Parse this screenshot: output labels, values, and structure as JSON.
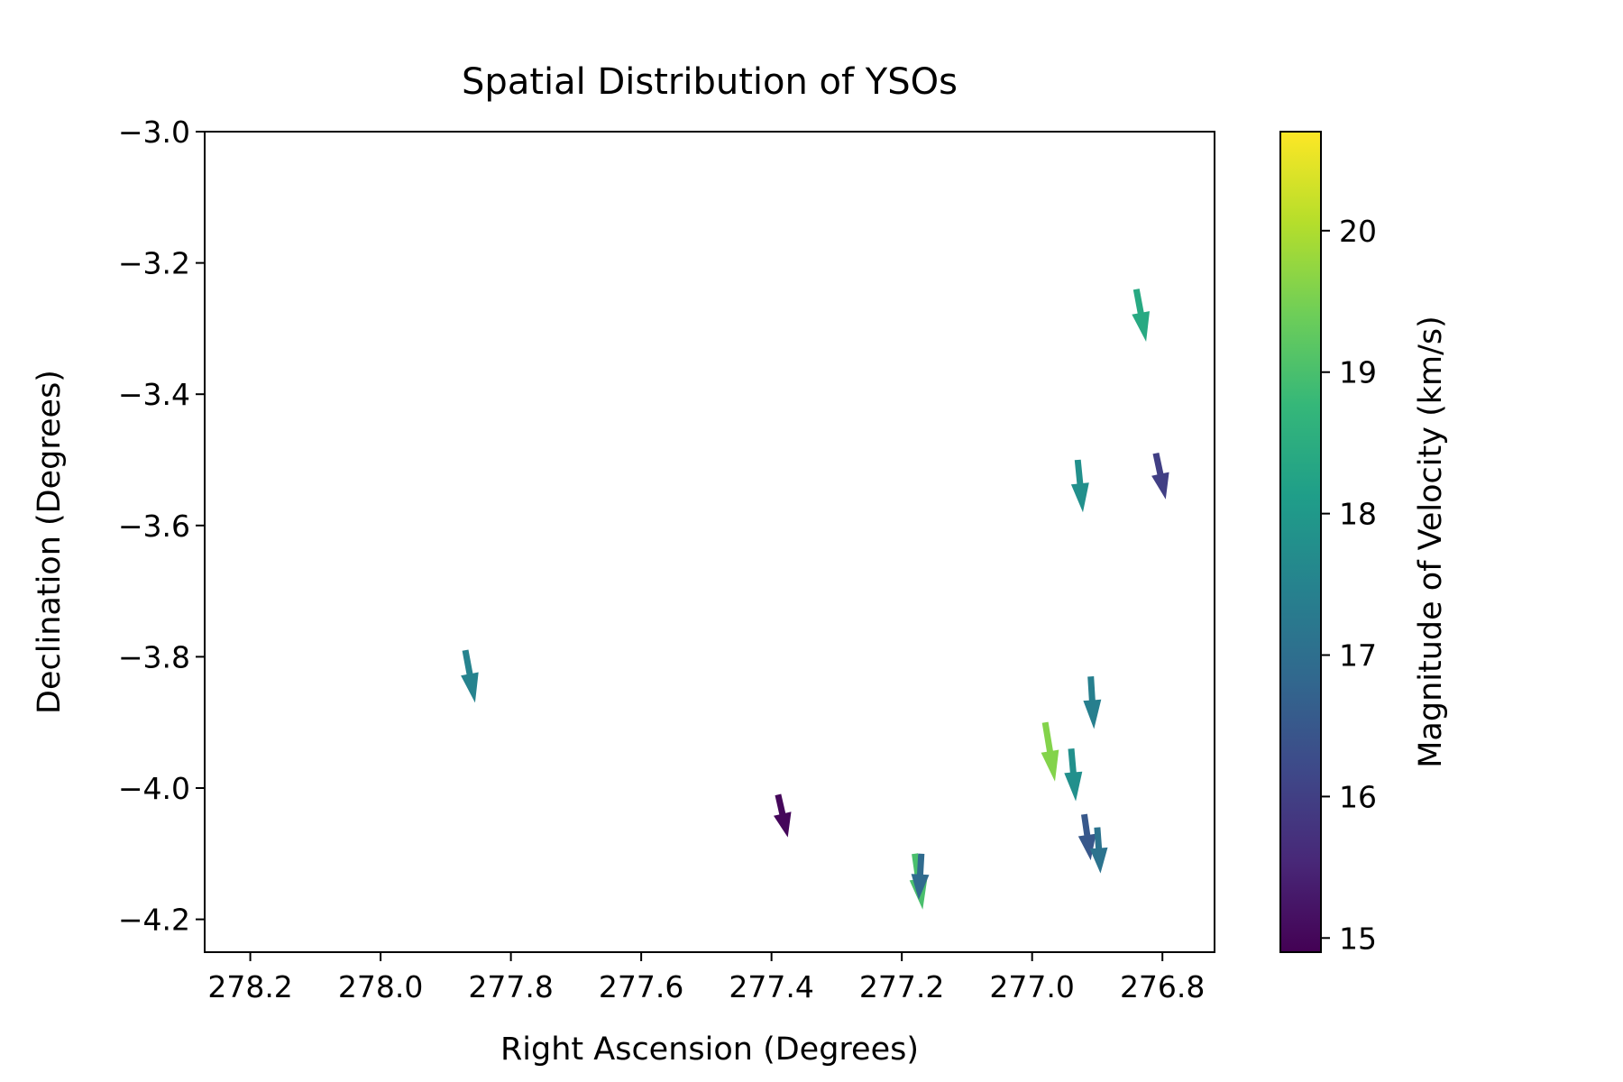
{
  "chart_data": {
    "type": "quiver",
    "title": "Spatial Distribution of YSOs",
    "xlabel": "Right Ascension (Degrees)",
    "ylabel": "Declination (Degrees)",
    "xlim": [
      278.27,
      276.72
    ],
    "ylim": [
      -4.25,
      -3.0
    ],
    "x_inverted": true,
    "xticks": [
      278.2,
      278.0,
      277.8,
      277.6,
      277.4,
      277.2,
      277.0,
      276.8
    ],
    "xtick_labels": [
      "278.2",
      "278.0",
      "277.8",
      "277.6",
      "277.4",
      "277.2",
      "277.0",
      "276.8"
    ],
    "yticks": [
      -3.0,
      -3.2,
      -3.4,
      -3.6,
      -3.8,
      -4.0,
      -4.2
    ],
    "ytick_labels": [
      "−3.0",
      "−3.2",
      "−3.4",
      "−3.6",
      "−3.8",
      "−4.0",
      "−4.2"
    ],
    "grid": false,
    "colorbar": {
      "label": "Magnitude of Velocity (km/s)",
      "colormap": "viridis",
      "range": [
        14.9,
        20.7
      ],
      "ticks": [
        15,
        16,
        17,
        18,
        19,
        20
      ],
      "tick_labels": [
        "15",
        "16",
        "17",
        "18",
        "19",
        "20"
      ],
      "stops": [
        "#440154",
        "#482878",
        "#3e4989",
        "#31688e",
        "#26828e",
        "#1f9e89",
        "#35b779",
        "#6ece58",
        "#b5de2b",
        "#fde725"
      ]
    },
    "points": [
      {
        "ra": 276.84,
        "dec": -3.24,
        "u": -0.015,
        "v": -0.08,
        "speed": 18.4
      },
      {
        "ra": 276.93,
        "dec": -3.5,
        "u": -0.008,
        "v": -0.08,
        "speed": 17.8
      },
      {
        "ra": 276.81,
        "dec": -3.49,
        "u": -0.015,
        "v": -0.07,
        "speed": 16.0
      },
      {
        "ra": 277.87,
        "dec": -3.79,
        "u": -0.015,
        "v": -0.08,
        "speed": 17.5
      },
      {
        "ra": 276.91,
        "dec": -3.83,
        "u": -0.005,
        "v": -0.08,
        "speed": 17.4
      },
      {
        "ra": 276.98,
        "dec": -3.9,
        "u": -0.015,
        "v": -0.09,
        "speed": 19.6
      },
      {
        "ra": 276.94,
        "dec": -3.94,
        "u": -0.007,
        "v": -0.08,
        "speed": 17.8
      },
      {
        "ra": 277.39,
        "dec": -4.01,
        "u": -0.015,
        "v": -0.065,
        "speed": 15.0
      },
      {
        "ra": 276.92,
        "dec": -4.04,
        "u": -0.01,
        "v": -0.07,
        "speed": 16.5
      },
      {
        "ra": 276.9,
        "dec": -4.06,
        "u": -0.005,
        "v": -0.07,
        "speed": 17.1
      },
      {
        "ra": 277.18,
        "dec": -4.1,
        "u": -0.012,
        "v": -0.085,
        "speed": 19.0
      },
      {
        "ra": 277.17,
        "dec": -4.1,
        "u": 0.004,
        "v": -0.07,
        "speed": 16.9
      }
    ]
  }
}
